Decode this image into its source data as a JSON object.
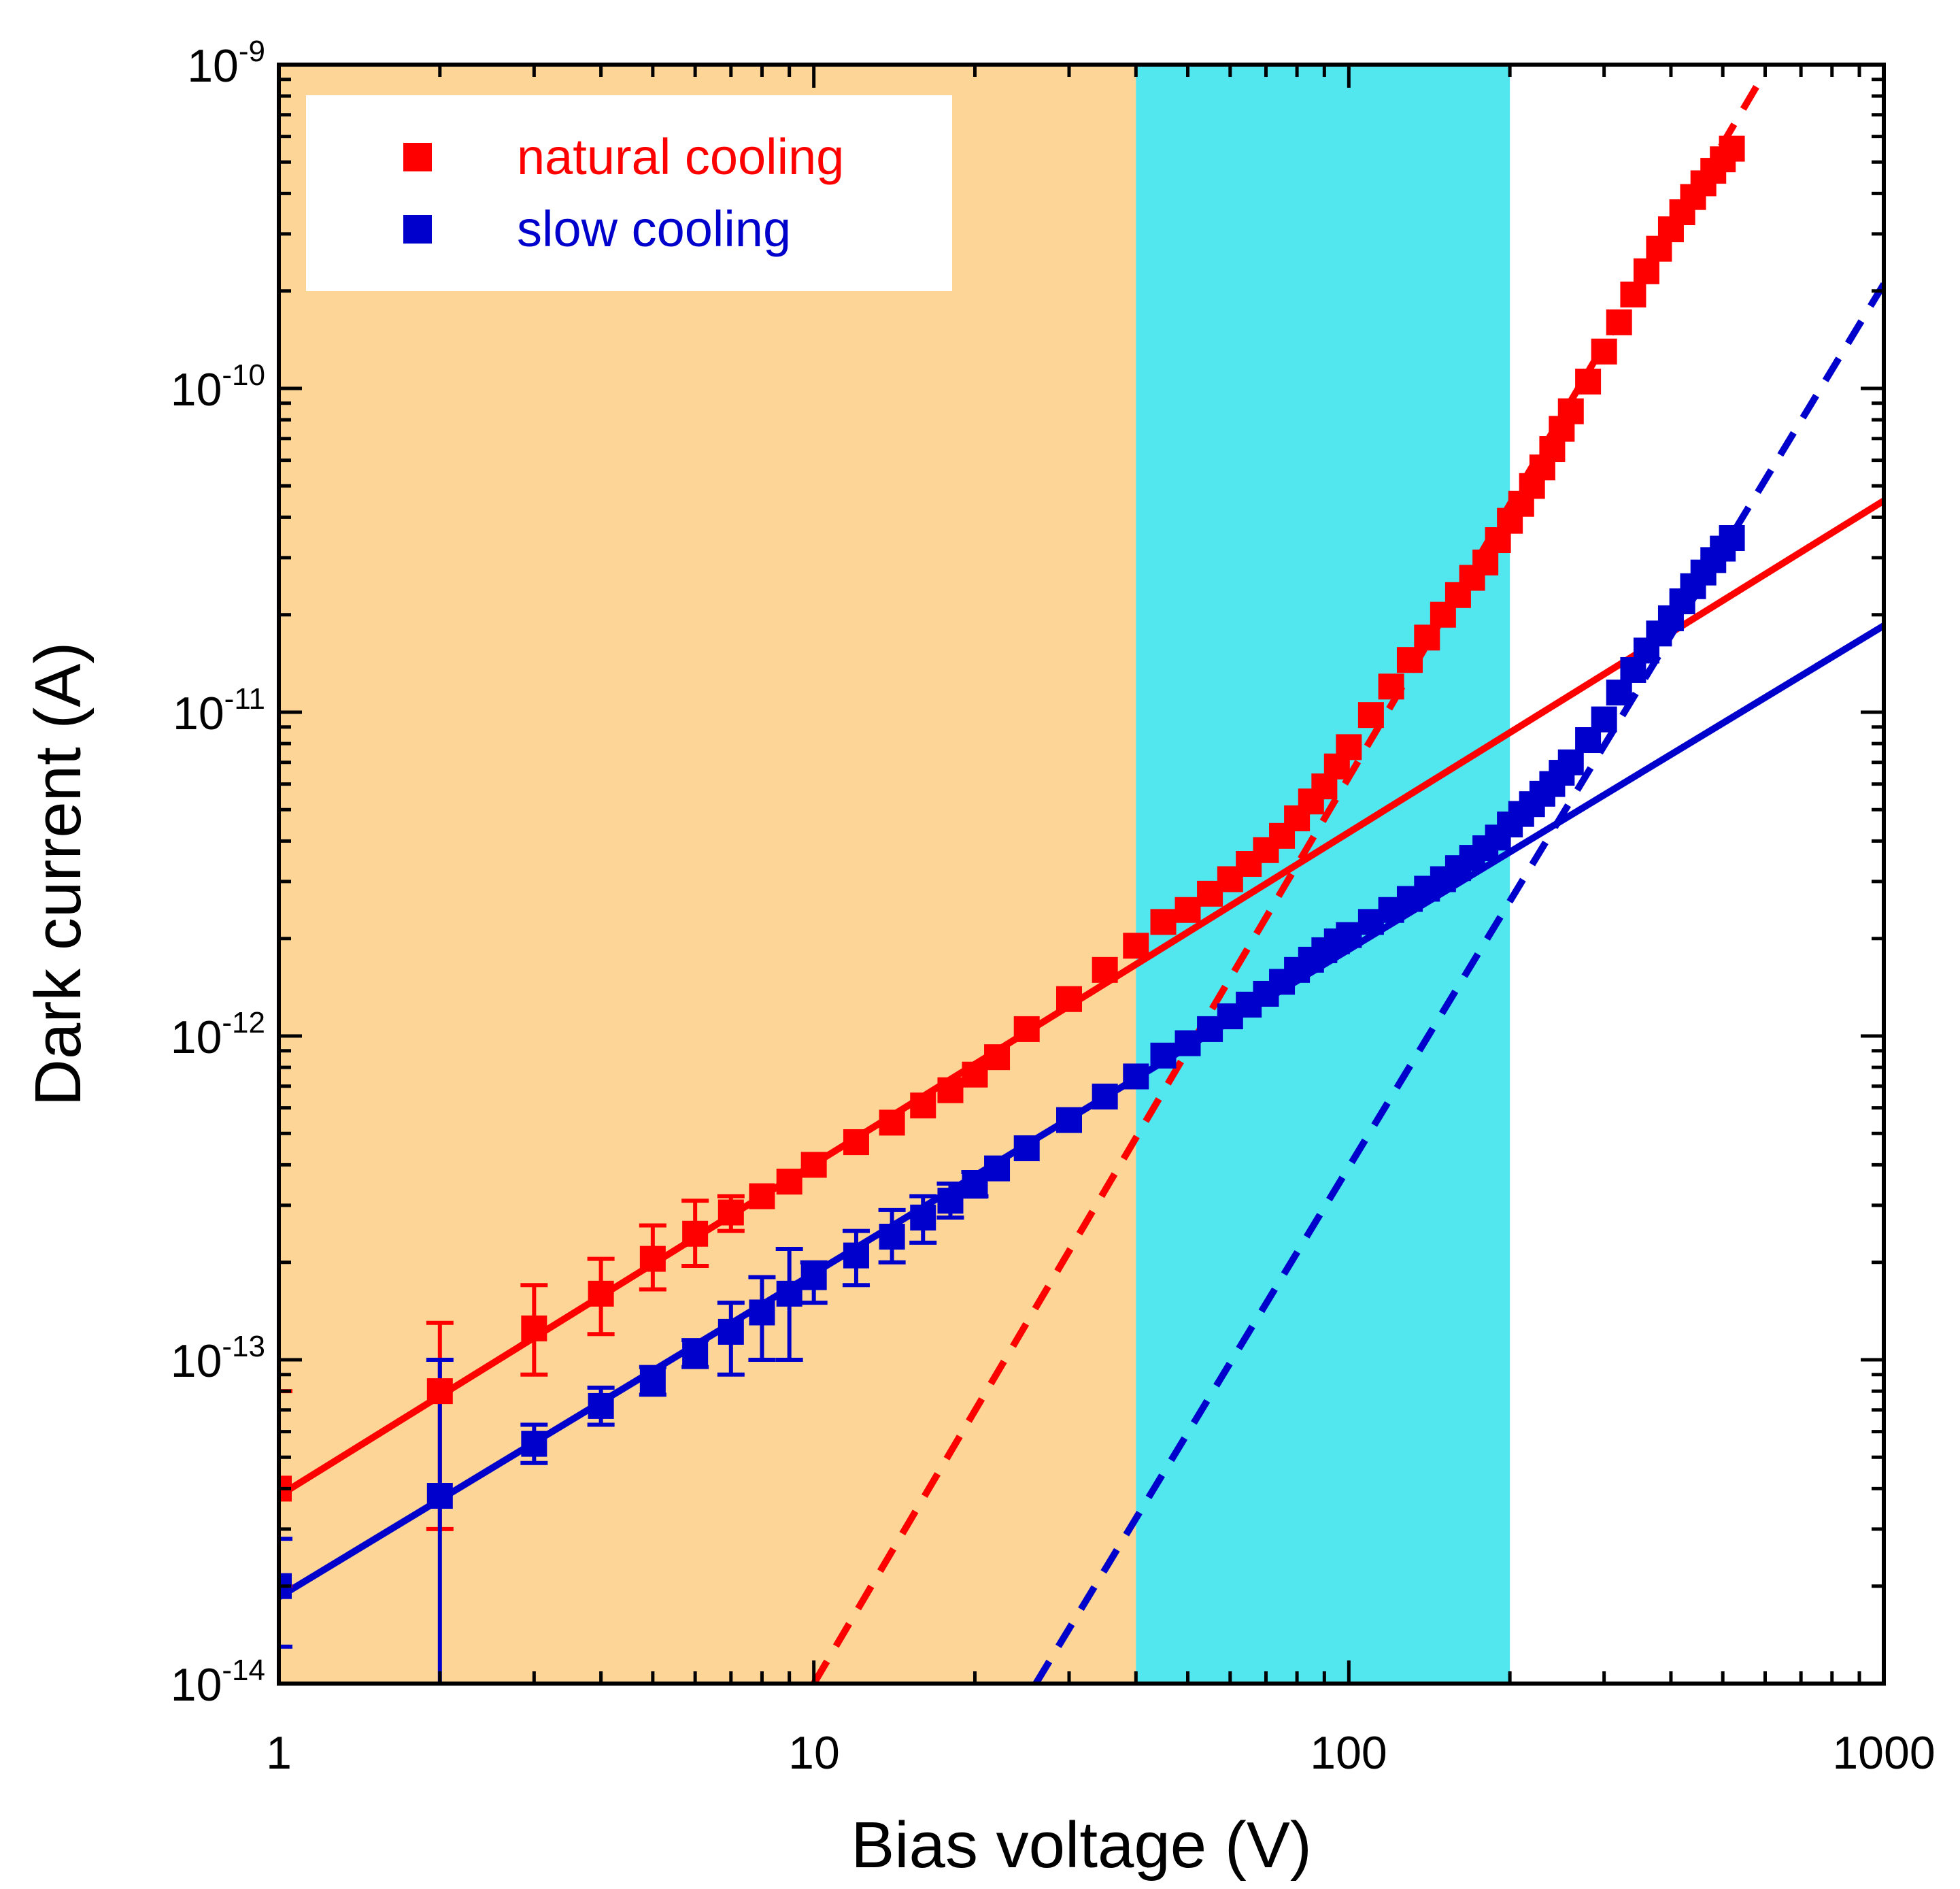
{
  "chart_data": {
    "type": "scatter",
    "xscale": "log",
    "yscale": "log",
    "xlabel": "Bias voltage (V)",
    "ylabel": "Dark current (A)",
    "xlim": [
      1,
      1000
    ],
    "ylim": [
      1e-14,
      1e-09
    ],
    "x_tick_labels": [
      "1",
      "10",
      "100",
      "1000"
    ],
    "y_tick_labels": [
      {
        "base": "10",
        "exp": "-14"
      },
      {
        "base": "10",
        "exp": "-13"
      },
      {
        "base": "10",
        "exp": "-12"
      },
      {
        "base": "10",
        "exp": "-11"
      },
      {
        "base": "10",
        "exp": "-10"
      },
      {
        "base": "10",
        "exp": "-9"
      }
    ],
    "shaded_regions": [
      {
        "x_range": [
          1,
          40
        ],
        "color": "#FCD597"
      },
      {
        "x_range": [
          40,
          200
        ],
        "color": "#52E6EE"
      }
    ],
    "legend": {
      "position": "top-left"
    },
    "series": [
      {
        "name": "natural cooling",
        "color": "#FF0000",
        "x": [
          1,
          2,
          3,
          4,
          5,
          6,
          7,
          8,
          9,
          10,
          12,
          14,
          16,
          18,
          20,
          22,
          25,
          30,
          35,
          40,
          45,
          50,
          55,
          60,
          65,
          70,
          75,
          80,
          85,
          90,
          95,
          100,
          110,
          120,
          130,
          140,
          150,
          160,
          170,
          180,
          190,
          200,
          210,
          220,
          230,
          240,
          250,
          260,
          280,
          300,
          320,
          340,
          360,
          380,
          400,
          420,
          440,
          460,
          480,
          500,
          520
        ],
        "y": [
          4e-14,
          8e-14,
          1.25e-13,
          1.6e-13,
          2.05e-13,
          2.45e-13,
          2.85e-13,
          3.2e-13,
          3.55e-13,
          4e-13,
          4.7e-13,
          5.4e-13,
          6.1e-13,
          6.8e-13,
          7.6e-13,
          8.6e-13,
          1.05e-12,
          1.3e-12,
          1.6e-12,
          1.9e-12,
          2.25e-12,
          2.45e-12,
          2.75e-12,
          3.05e-12,
          3.4e-12,
          3.75e-12,
          4.15e-12,
          4.7e-12,
          5.3e-12,
          5.9e-12,
          6.8e-12,
          7.8e-12,
          9.8e-12,
          1.2e-11,
          1.45e-11,
          1.7e-11,
          2e-11,
          2.3e-11,
          2.6e-11,
          2.9e-11,
          3.4e-11,
          3.9e-11,
          4.4e-11,
          5e-11,
          5.7e-11,
          6.5e-11,
          7.5e-11,
          8.5e-11,
          1.05e-10,
          1.3e-10,
          1.6e-10,
          1.95e-10,
          2.3e-10,
          2.7e-10,
          3.1e-10,
          3.5e-10,
          3.9e-10,
          4.3e-10,
          4.7e-10,
          5.1e-10,
          5.5e-10
        ],
        "err_low": [
          2e-14,
          3e-14,
          9e-14,
          1.2e-13,
          1.65e-13,
          1.95e-13,
          2.5e-13
        ],
        "err_high": [
          8e-14,
          1.3e-13,
          1.7e-13,
          2.05e-13,
          2.6e-13,
          3.1e-13,
          3.2e-13
        ],
        "fit_solid": {
          "x": [
            1,
            1000
          ],
          "y": [
            3.8e-14,
            4.5e-11
          ]
        },
        "fit_dashed": {
          "x": [
            10,
            600
          ],
          "y": [
            1e-14,
            9.5e-10
          ]
        }
      },
      {
        "name": "slow cooling",
        "color": "#0000CC",
        "x": [
          1,
          2,
          3,
          4,
          5,
          6,
          7,
          8,
          9,
          10,
          12,
          14,
          16,
          18,
          20,
          22,
          25,
          30,
          35,
          40,
          45,
          50,
          55,
          60,
          65,
          70,
          75,
          80,
          85,
          90,
          95,
          100,
          110,
          120,
          130,
          140,
          150,
          160,
          170,
          180,
          190,
          200,
          210,
          220,
          230,
          240,
          250,
          260,
          280,
          300,
          320,
          340,
          360,
          380,
          400,
          420,
          440,
          460,
          480,
          500,
          520
        ],
        "y": [
          2e-14,
          3.8e-14,
          5.5e-14,
          7.2e-14,
          8.6e-14,
          1.05e-13,
          1.22e-13,
          1.4e-13,
          1.6e-13,
          1.8e-13,
          2.1e-13,
          2.4e-13,
          2.75e-13,
          3.1e-13,
          3.45e-13,
          3.9e-13,
          4.5e-13,
          5.5e-13,
          6.5e-13,
          7.5e-13,
          8.7e-13,
          9.5e-13,
          1.05e-12,
          1.15e-12,
          1.25e-12,
          1.35e-12,
          1.47e-12,
          1.6e-12,
          1.72e-12,
          1.84e-12,
          1.96e-12,
          2.05e-12,
          2.25e-12,
          2.45e-12,
          2.65e-12,
          2.85e-12,
          3.05e-12,
          3.3e-12,
          3.55e-12,
          3.8e-12,
          4.1e-12,
          4.5e-12,
          4.85e-12,
          5.2e-12,
          5.6e-12,
          6e-12,
          6.5e-12,
          7e-12,
          8.2e-12,
          9.5e-12,
          1.15e-11,
          1.35e-11,
          1.55e-11,
          1.75e-11,
          1.95e-11,
          2.2e-11,
          2.45e-11,
          2.7e-11,
          2.95e-11,
          3.2e-11,
          3.45e-11
        ],
        "err_low": [
          1.3e-14,
          1e-14,
          4.8e-14,
          6.3e-14,
          7.8e-14,
          9.5e-14,
          9e-14,
          1e-13,
          1e-13,
          1.5e-13,
          1.7e-13,
          2e-13,
          2.3e-13,
          2.75e-13,
          3.2e-13
        ],
        "err_high": [
          2.8e-14,
          1e-13,
          6.3e-14,
          8.2e-14,
          9.5e-14,
          1.15e-13,
          1.5e-13,
          1.8e-13,
          2.2e-13,
          2e-13,
          2.5e-13,
          2.9e-13,
          3.2e-13,
          3.5e-13,
          3.8e-13
        ],
        "fit_solid": {
          "x": [
            1,
            1000
          ],
          "y": [
            1.85e-14,
            1.85e-11
          ]
        },
        "fit_dashed": {
          "x": [
            26,
            1000
          ],
          "y": [
            1e-14,
            2.1e-10
          ]
        }
      }
    ]
  }
}
